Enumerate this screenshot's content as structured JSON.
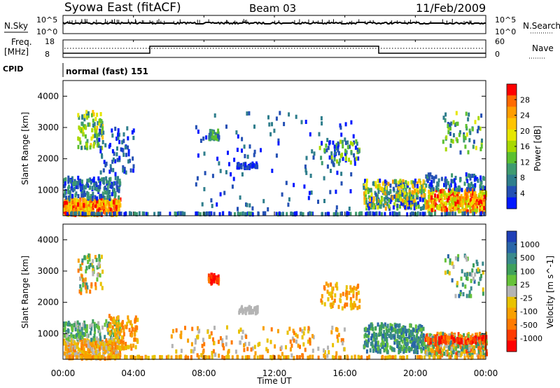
{
  "title": {
    "station": "Syowa East (fitACF)",
    "beam": "Beam 03",
    "date": "11/Feb/2009"
  },
  "top_panels": {
    "nsky_label": "N.Sky",
    "nsky_ticks": [
      "10^5",
      "10^0"
    ],
    "nsearch_label": "N.Search",
    "nsearch_ticks": [
      "10^5",
      "10^0"
    ],
    "freq_label_1": "Freq.",
    "freq_label_2": "[MHz]",
    "freq_ticks": [
      "18",
      "8"
    ],
    "nave_label": "Nave",
    "nave_ticks": [
      "60",
      "0"
    ],
    "cpid_label": "CPID",
    "cpid_text": "normal (fast) 151"
  },
  "colorbars": {
    "power": {
      "label": "Power [dB]",
      "ticks": [
        "28",
        "24",
        "20",
        "16",
        "12",
        "8",
        "4"
      ],
      "colors": [
        "#ff0000",
        "#ff6a00",
        "#ff9d00",
        "#ffc400",
        "#e6e600",
        "#a8d800",
        "#5cc030",
        "#3f9b70",
        "#2f7e8c",
        "#2450b4",
        "#0018ff"
      ]
    },
    "velocity": {
      "label": "Velocity [m s^-1]",
      "ticks": [
        "1000",
        "500",
        "100",
        "25",
        "-25",
        "-100",
        "-500",
        "-1000"
      ],
      "colors": [
        "#1f3fb6",
        "#2a66a8",
        "#3a8a8c",
        "#3fa05c",
        "#66c23a",
        "#b4b4b4",
        "#e8c200",
        "#f8a000",
        "#ff7a00",
        "#ff3a00",
        "#ff0000"
      ]
    }
  },
  "chart_data": [
    {
      "type": "heatmap",
      "name": "power",
      "ylabel": "Slant Range [km]",
      "xlim": [
        "00:00",
        "00:00"
      ],
      "ylim": [
        180,
        4500
      ],
      "yticks": [
        1000,
        2000,
        3000,
        4000
      ],
      "colorbar_range": [
        0,
        31
      ],
      "units": "dB"
    },
    {
      "type": "heatmap",
      "name": "velocity",
      "ylabel": "Slant Range [km]",
      "xlabel": "Time UT",
      "xticks": [
        "00:00",
        "04:00",
        "08:00",
        "12:00",
        "16:00",
        "20:00",
        "00:00"
      ],
      "ylim": [
        180,
        4500
      ],
      "yticks": [
        1000,
        2000,
        3000,
        4000
      ],
      "colorbar_range": [
        -1000,
        1000
      ],
      "units": "m s^-1"
    }
  ]
}
